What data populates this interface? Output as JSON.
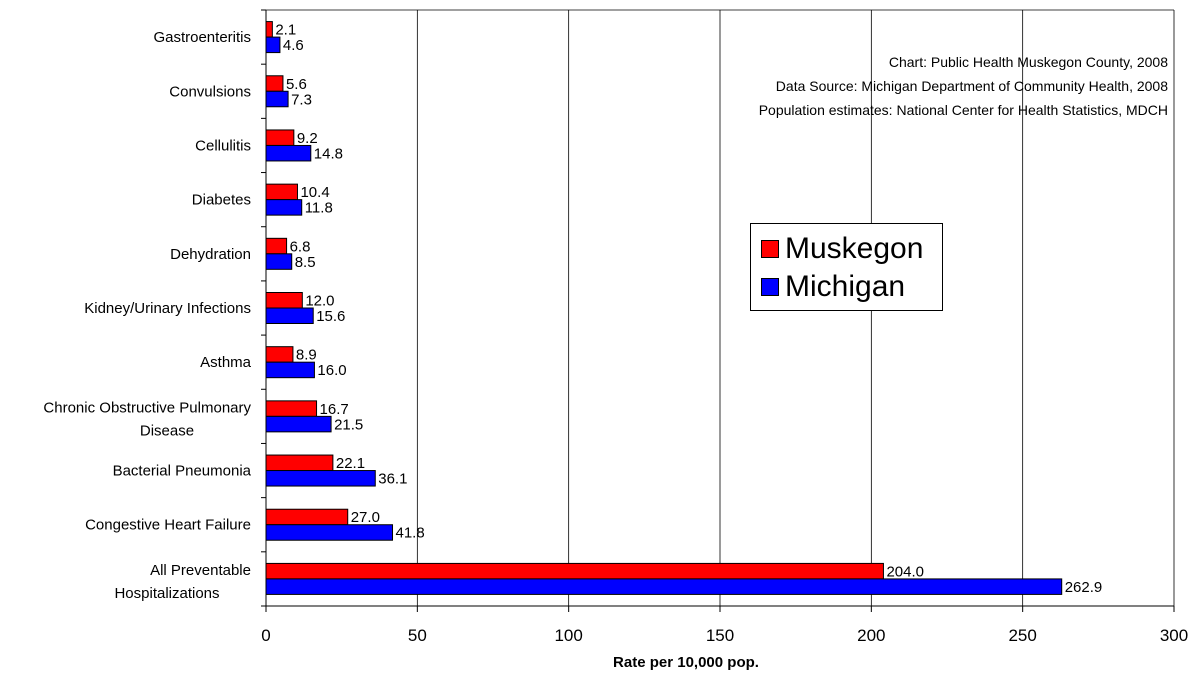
{
  "chart_data": {
    "type": "bar",
    "orientation": "horizontal",
    "categories": [
      "Gastroenteritis",
      "Convulsions",
      "Cellulitis",
      "Diabetes",
      "Dehydration",
      "Kidney/Urinary Infections",
      "Asthma",
      "Chronic Obstructive Pulmonary Disease",
      "Bacterial Pneumonia",
      "Congestive Heart Failure",
      "All Preventable Hospitalizations"
    ],
    "series": [
      {
        "name": "Muskegon",
        "color": "#ff0000",
        "values": [
          2.1,
          5.6,
          9.2,
          10.4,
          6.8,
          12.0,
          8.9,
          16.7,
          22.1,
          27.0,
          204.0
        ],
        "labels": [
          "2.1",
          "5.6",
          "9.2",
          "10.4",
          "6.8",
          "12.0",
          "8.9",
          "16.7",
          "22.1",
          "27.0",
          "204.0"
        ]
      },
      {
        "name": "Michigan",
        "color": "#0000ff",
        "values": [
          4.6,
          7.3,
          14.8,
          11.8,
          8.5,
          15.6,
          16.0,
          21.5,
          36.1,
          41.8,
          262.9
        ],
        "labels": [
          "4.6",
          "7.3",
          "14.8",
          "11.8",
          "8.5",
          "15.6",
          "16.0",
          "21.5",
          "36.1",
          "41.8",
          "262.9"
        ]
      }
    ],
    "xlabel": "Rate per 10,000 pop.",
    "xlim": [
      0,
      300
    ],
    "xticks": [
      "0",
      "50",
      "100",
      "150",
      "200",
      "250",
      "300"
    ],
    "grid": "vertical",
    "legend_position": "right-middle",
    "notes": [
      "Chart: Public Health Muskegon County, 2008",
      "Data Source: Michigan Department of Community Health, 2008",
      "Population estimates: National Center for Health Statistics, MDCH"
    ]
  }
}
